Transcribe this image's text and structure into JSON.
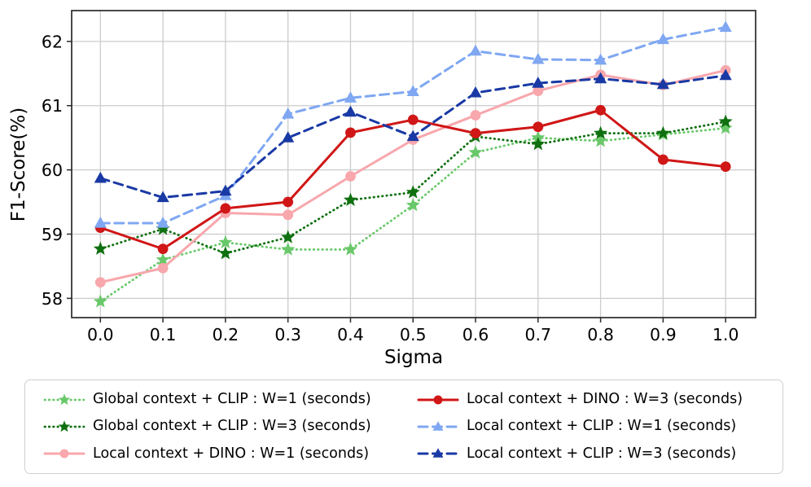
{
  "figure": {
    "xlabel": "Sigma",
    "ylabel": "F1-Score(%)"
  },
  "chart_data": {
    "type": "line",
    "title": "",
    "xlabel": "Sigma",
    "ylabel": "F1-Score(%)",
    "x": [
      0.0,
      0.1,
      0.2,
      0.3,
      0.4,
      0.5,
      0.6,
      0.7,
      0.8,
      0.9,
      1.0
    ],
    "x_tick_labels": [
      "0.0",
      "0.1",
      "0.2",
      "0.3",
      "0.4",
      "0.5",
      "0.6",
      "0.7",
      "0.8",
      "0.9",
      "1.0"
    ],
    "y_ticks": [
      58,
      59,
      60,
      61,
      62
    ],
    "y_tick_labels": [
      "58",
      "59",
      "60",
      "61",
      "62"
    ],
    "xlim": [
      -0.046,
      1.048
    ],
    "ylim": [
      57.7,
      62.48
    ],
    "grid": true,
    "grid_color": "#cccccc",
    "spine_color": "#2a2a2a",
    "legend_position": "below-two-columns",
    "series": [
      {
        "name": "Global context + CLIP : W=1 (seconds)",
        "color": "#69c869",
        "linestyle": "dotted",
        "marker": "star",
        "values": [
          57.95,
          58.6,
          58.87,
          58.76,
          58.76,
          59.45,
          60.27,
          60.5,
          60.45,
          60.55,
          60.65
        ]
      },
      {
        "name": "Global context + CLIP : W=3 (seconds)",
        "color": "#0f7010",
        "linestyle": "dotted",
        "marker": "star",
        "values": [
          58.77,
          59.08,
          58.7,
          58.95,
          59.53,
          59.65,
          60.52,
          60.4,
          60.57,
          60.57,
          60.75
        ]
      },
      {
        "name": "Local context + DINO : W=1 (seconds)",
        "color": "#f8a7ac",
        "linestyle": "solid",
        "marker": "circle",
        "values": [
          58.25,
          58.47,
          59.33,
          59.3,
          59.9,
          60.47,
          60.85,
          61.23,
          61.48,
          61.32,
          61.55
        ]
      },
      {
        "name": "Local context + DINO : W=3 (seconds)",
        "color": "#d01616",
        "linestyle": "solid",
        "marker": "circle",
        "values": [
          59.1,
          58.77,
          59.4,
          59.5,
          60.58,
          60.78,
          60.57,
          60.67,
          60.93,
          60.16,
          60.05
        ]
      },
      {
        "name": "Local context + CLIP : W=1 (seconds)",
        "color": "#7fa7f2",
        "linestyle": "dashed",
        "marker": "triangle",
        "values": [
          59.17,
          59.17,
          59.6,
          60.87,
          61.12,
          61.22,
          61.85,
          61.72,
          61.71,
          62.03,
          62.22
        ]
      },
      {
        "name": "Local context + CLIP : W=3 (seconds)",
        "color": "#1939a4",
        "linestyle": "dashed",
        "marker": "triangle",
        "values": [
          59.87,
          59.57,
          59.67,
          60.5,
          60.9,
          60.52,
          61.2,
          61.35,
          61.42,
          61.33,
          61.47
        ]
      }
    ]
  }
}
